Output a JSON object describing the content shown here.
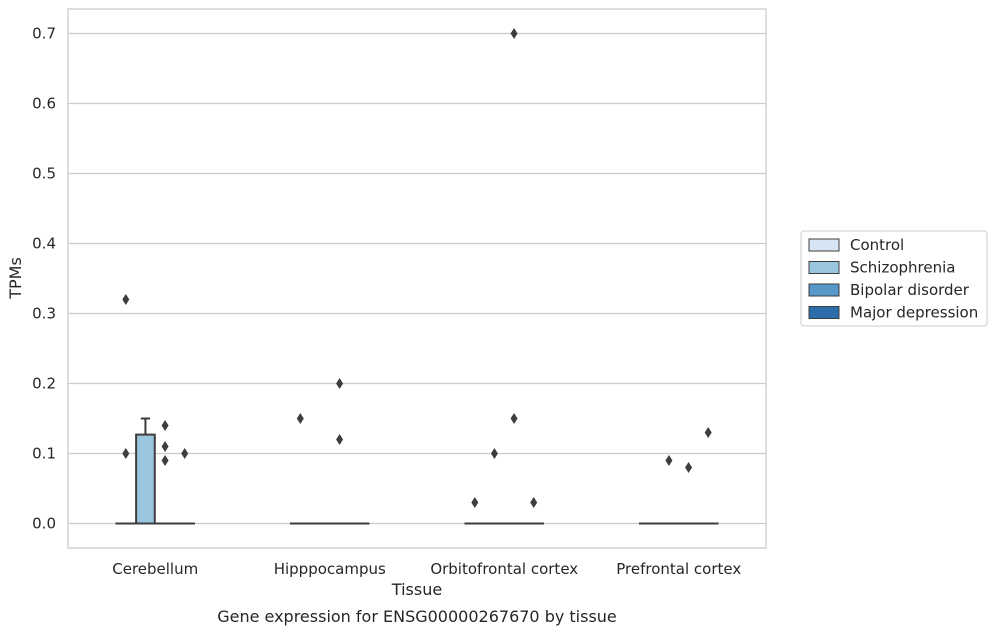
{
  "caption": "Gene expression for ENSG00000267670 by tissue",
  "colors": {
    "Control": "#d6e5f3",
    "Schizophrenia": "#9ac5df",
    "Bipolar disorder": "#5699c8",
    "Major depression": "#2b6dab",
    "grid": "#cccccc",
    "frame": "#cccccc",
    "line": "#3d3d3d"
  },
  "chart_data": {
    "type": "box",
    "xlabel": "Tissue",
    "ylabel": "TPMs",
    "ylim": [
      -0.035,
      0.735
    ],
    "yticks": [
      0.0,
      0.1,
      0.2,
      0.3,
      0.4,
      0.5,
      0.6,
      0.7
    ],
    "ytick_labels": [
      "0.0",
      "0.1",
      "0.2",
      "0.3",
      "0.4",
      "0.5",
      "0.6",
      "0.7"
    ],
    "grid": "horizontal",
    "legend_position": "right",
    "categories": [
      "Cerebellum",
      "Hipppocampus",
      "Orbitofrontal cortex",
      "Prefrontal cortex"
    ],
    "series": [
      {
        "name": "Control",
        "boxes": [
          {
            "q1": 0,
            "median": 0,
            "q3": 0,
            "whisker_low": 0,
            "whisker_high": 0,
            "outliers": [
              0.32,
              0.1
            ]
          },
          {
            "q1": 0,
            "median": 0,
            "q3": 0,
            "whisker_low": 0,
            "whisker_high": 0,
            "outliers": [
              0.15
            ]
          },
          {
            "q1": 0,
            "median": 0,
            "q3": 0,
            "whisker_low": 0,
            "whisker_high": 0,
            "outliers": [
              0.03
            ]
          },
          {
            "q1": 0,
            "median": 0,
            "q3": 0,
            "whisker_low": 0,
            "whisker_high": 0,
            "outliers": []
          }
        ]
      },
      {
        "name": "Schizophrenia",
        "boxes": [
          {
            "q1": 0,
            "median": 0,
            "q3": 0.127,
            "whisker_low": 0,
            "whisker_high": 0.15,
            "outliers": []
          },
          {
            "q1": 0,
            "median": 0,
            "q3": 0,
            "whisker_low": 0,
            "whisker_high": 0,
            "outliers": []
          },
          {
            "q1": 0,
            "median": 0,
            "q3": 0,
            "whisker_low": 0,
            "whisker_high": 0,
            "outliers": [
              0.1
            ]
          },
          {
            "q1": 0,
            "median": 0,
            "q3": 0,
            "whisker_low": 0,
            "whisker_high": 0,
            "outliers": [
              0.09
            ]
          }
        ]
      },
      {
        "name": "Bipolar disorder",
        "boxes": [
          {
            "q1": 0,
            "median": 0,
            "q3": 0,
            "whisker_low": 0,
            "whisker_high": 0,
            "outliers": [
              0.14,
              0.11,
              0.09
            ]
          },
          {
            "q1": 0,
            "median": 0,
            "q3": 0,
            "whisker_low": 0,
            "whisker_high": 0,
            "outliers": [
              0.2,
              0.12
            ]
          },
          {
            "q1": 0,
            "median": 0,
            "q3": 0,
            "whisker_low": 0,
            "whisker_high": 0,
            "outliers": [
              0.7,
              0.15
            ]
          },
          {
            "q1": 0,
            "median": 0,
            "q3": 0,
            "whisker_low": 0,
            "whisker_high": 0,
            "outliers": [
              0.08
            ]
          }
        ]
      },
      {
        "name": "Major depression",
        "boxes": [
          {
            "q1": 0,
            "median": 0,
            "q3": 0,
            "whisker_low": 0,
            "whisker_high": 0,
            "outliers": [
              0.1
            ]
          },
          {
            "q1": 0,
            "median": 0,
            "q3": 0,
            "whisker_low": 0,
            "whisker_high": 0,
            "outliers": []
          },
          {
            "q1": 0,
            "median": 0,
            "q3": 0,
            "whisker_low": 0,
            "whisker_high": 0,
            "outliers": [
              0.03
            ]
          },
          {
            "q1": 0,
            "median": 0,
            "q3": 0,
            "whisker_low": 0,
            "whisker_high": 0,
            "outliers": [
              0.13
            ]
          }
        ]
      }
    ]
  }
}
